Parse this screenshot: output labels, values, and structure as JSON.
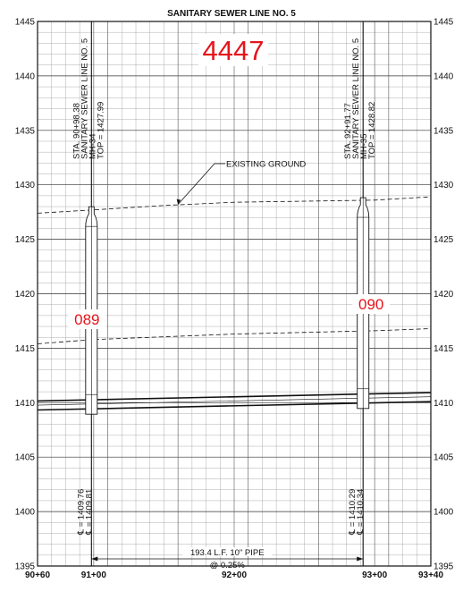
{
  "title": "SANITARY SEWER LINE NO. 5",
  "sheet_number": "4447",
  "chart_data": {
    "type": "profile",
    "title": "SANITARY SEWER LINE NO. 5",
    "y_axis": {
      "min": 1395,
      "max": 1445,
      "major_step": 5,
      "ticks": [
        "1395",
        "1400",
        "1405",
        "1410",
        "1415",
        "1420",
        "1425",
        "1430",
        "1435",
        "1440",
        "1445"
      ]
    },
    "x_axis": {
      "min": 9060,
      "max": 9340,
      "ticks": [
        {
          "value": 9060,
          "label": "90+60"
        },
        {
          "value": 9100,
          "label": "91+00"
        },
        {
          "value": 9200,
          "label": "92+00"
        },
        {
          "value": 9300,
          "label": "93+00"
        },
        {
          "value": 9340,
          "label": "93+40"
        }
      ]
    },
    "grid": true,
    "existing_ground_label": "EXISTING GROUND",
    "existing_ground": [
      [
        9060,
        1427.4
      ],
      [
        9100,
        1427.7
      ],
      [
        9150,
        1428.1
      ],
      [
        9200,
        1428.4
      ],
      [
        9250,
        1428.5
      ],
      [
        9300,
        1428.6
      ],
      [
        9340,
        1428.9
      ]
    ],
    "secondary_dashed_line": [
      [
        9060,
        1415.4
      ],
      [
        9100,
        1415.8
      ],
      [
        9200,
        1416.3
      ],
      [
        9300,
        1416.6
      ],
      [
        9340,
        1416.8
      ]
    ],
    "pipe": {
      "start": [
        9098.38,
        1409.76
      ],
      "end": [
        9291.77,
        1410.29
      ],
      "label_length": "193.4 L.F. 10\" PIPE",
      "label_slope": "@ 0.25%"
    },
    "manholes": [
      {
        "id": "089",
        "station": 9098.38,
        "top": 1427.99,
        "invert": 1409.76,
        "labels": [
          "STA. 90+98.38",
          "SANITARY SEWER LINE NO. 5",
          "MH-34",
          "TOP = 1427.99"
        ],
        "invert_labels": [
          "℄ = 1409.76",
          "℄ = 1409.81"
        ]
      },
      {
        "id": "090",
        "station": 9291.77,
        "top": 1428.82,
        "invert": 1410.29,
        "labels": [
          "STA. 92+91.77",
          "SANITARY SEWER LINE NO. 5",
          "MH-35",
          "TOP = 1428.82"
        ],
        "invert_labels": [
          "℄ = 1410.29",
          "℄ = 1410.34"
        ]
      }
    ]
  }
}
